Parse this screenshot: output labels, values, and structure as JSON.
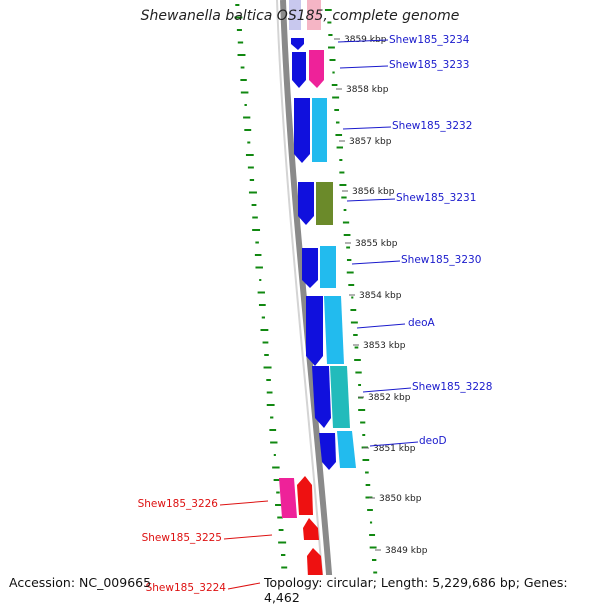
{
  "title": "Shewanella baltica OS185, complete genome",
  "footer": {
    "accession": "Accession: NC_009665",
    "topology": "Topology: circular; Length: 5,229,686 bp; Genes: 4,462"
  },
  "scale": {
    "unit": "kbp",
    "ticks": [
      "3859 kbp",
      "3858 kbp",
      "3857 kbp",
      "3856 kbp",
      "3855 kbp",
      "3854 kbp",
      "3853 kbp",
      "3852 kbp",
      "3851 kbp",
      "3850 kbp",
      "3849 kbp"
    ]
  },
  "gene_labels": [
    {
      "text": "Shew185_3234",
      "color": "#1a1acc"
    },
    {
      "text": "Shew185_3233",
      "color": "#1a1acc"
    },
    {
      "text": "Shew185_3232",
      "color": "#1a1acc"
    },
    {
      "text": "Shew185_3231",
      "color": "#1a1acc"
    },
    {
      "text": "Shew185_3230",
      "color": "#1a1acc"
    },
    {
      "text": "deoA",
      "color": "#1a1acc"
    },
    {
      "text": "Shew185_3228",
      "color": "#1a1acc"
    },
    {
      "text": "deoD",
      "color": "#1a1acc"
    },
    {
      "text": "Shew185_3226",
      "color": "#dd1111"
    },
    {
      "text": "Shew185_3225",
      "color": "#dd1111"
    },
    {
      "text": "Shew185_3224",
      "color": "#dd1111"
    }
  ],
  "colors": {
    "backbone": "#8a8a8a",
    "gene_forward": "#1010dd",
    "gene_reverse": "#ee1111",
    "cds_cyan": "#22bbee",
    "cds_teal": "#22bbbb",
    "cds_olive": "#6b8a2a",
    "cds_pink": "#ee2299",
    "gc_track": "#118811",
    "label_blue": "#1a1acc",
    "label_red": "#dd1111"
  }
}
